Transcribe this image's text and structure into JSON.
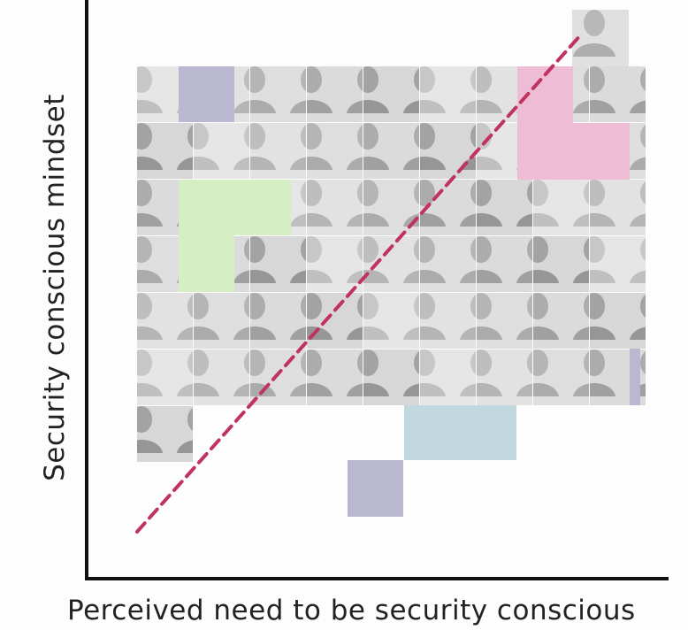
{
  "axes": {
    "x_label": "Perceived need to be security conscious",
    "y_label": "Security conscious mindset"
  },
  "colors": {
    "axis": "#111111",
    "trend_line": "#c0325f",
    "photo_tile": "#cfcfcf",
    "lavender": "#b9b8d0",
    "green": "#d6eec4",
    "pink": "#eebdd5",
    "light_blue": "#c2d8df"
  },
  "elements": {
    "photo_grid": "grayscale-headshot-photos",
    "trend_line_style": "dashed-diagonal"
  }
}
